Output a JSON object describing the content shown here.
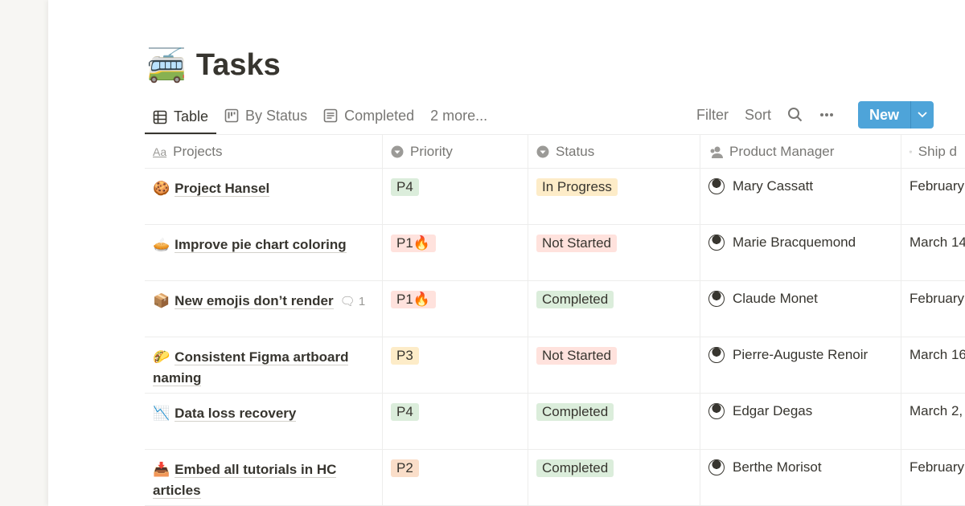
{
  "page": {
    "emoji": "🚎",
    "title": "Tasks"
  },
  "tabs": [
    {
      "label": "Table",
      "icon": "table-icon"
    },
    {
      "label": "By Status",
      "icon": "board-icon"
    },
    {
      "label": "Completed",
      "icon": "list-icon"
    }
  ],
  "more_tabs": "2 more...",
  "toolbar": {
    "filter": "Filter",
    "sort": "Sort",
    "new": "New"
  },
  "columns": [
    {
      "label": "Projects",
      "icon": "text-icon"
    },
    {
      "label": "Priority",
      "icon": "select-icon"
    },
    {
      "label": "Status",
      "icon": "select-icon"
    },
    {
      "label": "Product Manager",
      "icon": "person-icon"
    },
    {
      "label": "Ship d",
      "icon": "calendar-icon"
    }
  ],
  "colors": {
    "accent": "#4ea4d9"
  },
  "rows": [
    {
      "emoji": "🍪",
      "name": "Project Hansel",
      "comments": "",
      "priority": "P4",
      "priority_bg": "#dbeddb",
      "status": "In Progress",
      "status_bg": "#fdecc8",
      "pm": "Mary Cassatt",
      "date": "February"
    },
    {
      "emoji": "🥧",
      "name": "Improve pie chart coloring",
      "comments": "",
      "priority": "P1🔥",
      "priority_bg": "#ffe2dd",
      "status": "Not Started",
      "status_bg": "#ffe2dd",
      "pm": "Marie Bracquemond",
      "date": "March 14"
    },
    {
      "emoji": "📦",
      "name": "New emojis don’t render",
      "comments": "1",
      "priority": "P1🔥",
      "priority_bg": "#ffe2dd",
      "status": "Completed",
      "status_bg": "#dbeddb",
      "pm": "Claude Monet",
      "date": "February"
    },
    {
      "emoji": "🌮",
      "name": "Consistent Figma artboard naming",
      "comments": "",
      "priority": "P3",
      "priority_bg": "#fdecc8",
      "status": "Not Started",
      "status_bg": "#ffe2dd",
      "pm": "Pierre-Auguste Renoir",
      "date": "March 16"
    },
    {
      "emoji": "📉",
      "name": "Data loss recovery",
      "comments": "",
      "priority": "P4",
      "priority_bg": "#dbeddb",
      "status": "Completed",
      "status_bg": "#dbeddb",
      "pm": "Edgar Degas",
      "date": "March 2,"
    },
    {
      "emoji": "📥",
      "name": "Embed all tutorials in HC articles",
      "comments": "",
      "priority": "P2",
      "priority_bg": "#fadec9",
      "status": "Completed",
      "status_bg": "#dbeddb",
      "pm": "Berthe Morisot",
      "date": "February"
    }
  ]
}
